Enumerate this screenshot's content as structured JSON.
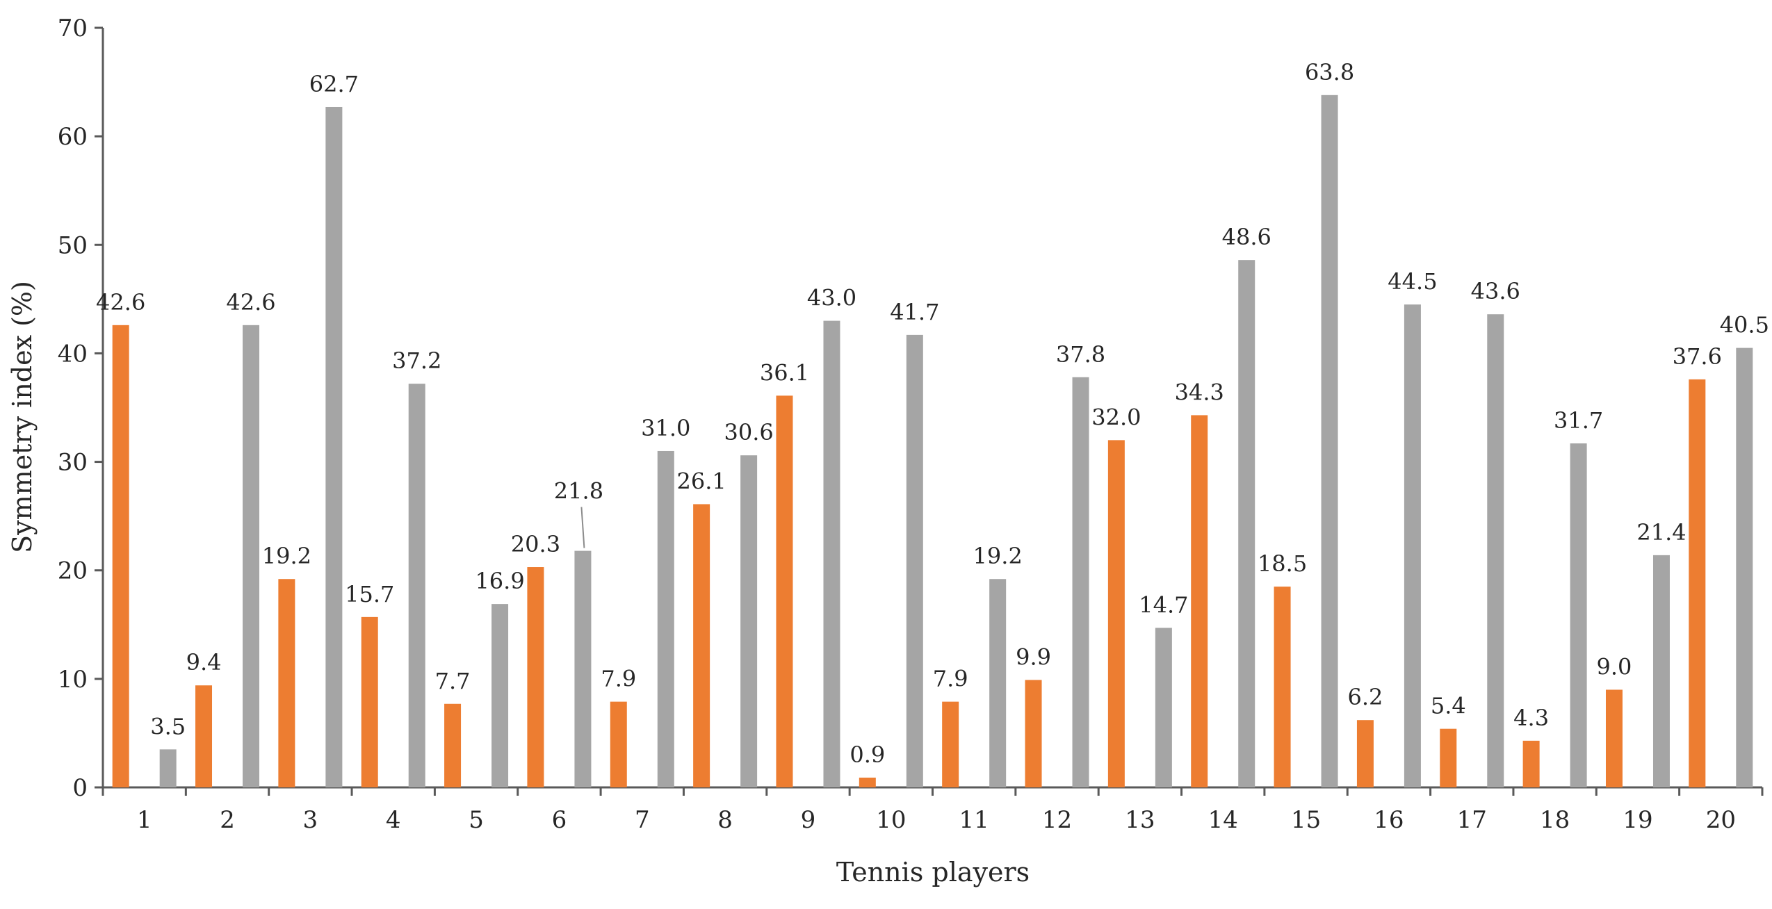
{
  "chart_data": {
    "type": "bar",
    "title": "",
    "xlabel": "Tennis players",
    "ylabel": "Symmetry index (%)",
    "ylim": [
      0,
      70
    ],
    "yticks": [
      0,
      10,
      20,
      30,
      40,
      50,
      60,
      70
    ],
    "grid": false,
    "legend": "none",
    "categories": [
      "1",
      "2",
      "3",
      "4",
      "5",
      "6",
      "7",
      "8",
      "9",
      "10",
      "11",
      "12",
      "13",
      "14",
      "15",
      "16",
      "17",
      "18",
      "19",
      "20"
    ],
    "series": [
      {
        "color": "#ED7D31",
        "values": [
          42.6,
          9.4,
          19.2,
          15.7,
          7.7,
          20.3,
          7.9,
          26.1,
          36.1,
          0.9,
          7.9,
          9.9,
          32.0,
          34.3,
          18.5,
          6.2,
          5.4,
          4.3,
          9.0,
          37.6
        ],
        "labels": [
          "42.6",
          "9.4",
          "19.2",
          "15.7",
          "7.7",
          "20.3",
          "7.9",
          "26.1",
          "36.1",
          "0.9",
          "7.9",
          "9.9",
          "32.0",
          "34.3",
          "18.5",
          "6.2",
          "5.4",
          "4.3",
          "9.0",
          "37.6"
        ]
      },
      {
        "color": "#A5A5A5",
        "values": [
          3.5,
          42.6,
          62.7,
          37.2,
          16.9,
          21.8,
          31.0,
          30.6,
          43.0,
          41.7,
          19.2,
          37.8,
          14.7,
          48.6,
          63.8,
          44.5,
          43.6,
          31.7,
          21.4,
          40.5
        ],
        "labels": [
          "3.5",
          "42.6",
          "62.7",
          "37.2",
          "16.9",
          "21.8",
          "31.0",
          "30.6",
          "43.0",
          "41.7",
          "19.2",
          "37.8",
          "14.7",
          "48.6",
          "63.8",
          "44.5",
          "43.6",
          "31.7",
          "21.4",
          "40.5"
        ]
      }
    ]
  }
}
